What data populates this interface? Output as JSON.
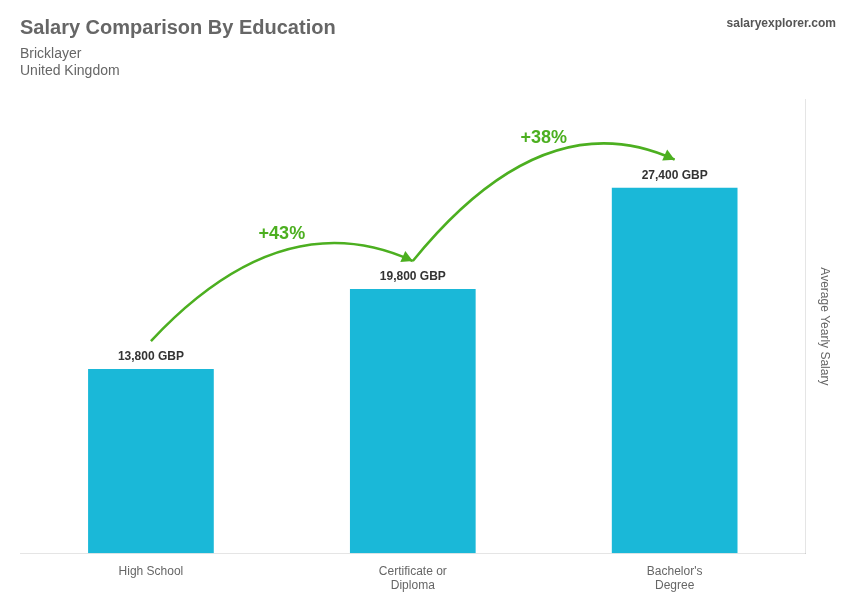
{
  "chart_data": {
    "type": "bar",
    "title": "Salary Comparison By Education",
    "subtitle": [
      "Bricklayer",
      "United Kingdom"
    ],
    "ylabel": "Average Yearly Salary",
    "categories": [
      "High School",
      "Certificate or\nDiploma",
      "Bachelor's\nDegree"
    ],
    "values": [
      13800,
      19800,
      27400
    ],
    "value_labels": [
      "13,800 GBP",
      "19,800 GBP",
      "27,400 GBP"
    ],
    "data_labels": true,
    "color": "#1ab8d8",
    "ylim": [
      0,
      34000
    ],
    "tick_labels": "x",
    "grid": false,
    "annotations": [
      "+43%",
      "+38%",
      "salaryexplorer.com"
    ]
  }
}
